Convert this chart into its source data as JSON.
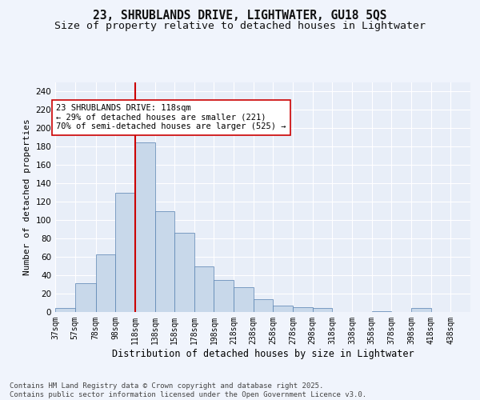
{
  "title1": "23, SHRUBLANDS DRIVE, LIGHTWATER, GU18 5QS",
  "title2": "Size of property relative to detached houses in Lightwater",
  "xlabel": "Distribution of detached houses by size in Lightwater",
  "ylabel": "Number of detached properties",
  "bar_left_edges": [
    37,
    57,
    78,
    98,
    118,
    138,
    158,
    178,
    198,
    218,
    238,
    258,
    278,
    298,
    318,
    338,
    358,
    378,
    398,
    418
  ],
  "bar_widths": [
    20,
    21,
    20,
    20,
    20,
    20,
    20,
    20,
    20,
    20,
    20,
    20,
    20,
    20,
    20,
    20,
    20,
    20,
    20,
    20
  ],
  "bar_heights": [
    4,
    31,
    63,
    130,
    184,
    110,
    86,
    50,
    35,
    27,
    14,
    7,
    5,
    4,
    0,
    0,
    1,
    0,
    4,
    0
  ],
  "tick_labels": [
    "37sqm",
    "57sqm",
    "78sqm",
    "98sqm",
    "118sqm",
    "138sqm",
    "158sqm",
    "178sqm",
    "198sqm",
    "218sqm",
    "238sqm",
    "258sqm",
    "278sqm",
    "298sqm",
    "318sqm",
    "338sqm",
    "358sqm",
    "378sqm",
    "398sqm",
    "418sqm",
    "438sqm"
  ],
  "tick_positions": [
    37,
    57,
    78,
    98,
    118,
    138,
    158,
    178,
    198,
    218,
    238,
    258,
    278,
    298,
    318,
    338,
    358,
    378,
    398,
    418,
    438
  ],
  "bar_color": "#c8d8ea",
  "bar_edge_color": "#5580b0",
  "vline_x": 118,
  "vline_color": "#cc0000",
  "annotation_line1": "23 SHRUBLANDS DRIVE: 118sqm",
  "annotation_line2": "← 29% of detached houses are smaller (221)",
  "annotation_line3": "70% of semi-detached houses are larger (525) →",
  "annotation_box_color": "#ffffff",
  "annotation_box_edge": "#cc0000",
  "ylim": [
    0,
    250
  ],
  "yticks": [
    0,
    20,
    40,
    60,
    80,
    100,
    120,
    140,
    160,
    180,
    200,
    220,
    240
  ],
  "bg_color": "#e8eef8",
  "fig_bg_color": "#f0f4fc",
  "grid_color": "#ffffff",
  "footer_text": "Contains HM Land Registry data © Crown copyright and database right 2025.\nContains public sector information licensed under the Open Government Licence v3.0.",
  "title1_fontsize": 10.5,
  "title2_fontsize": 9.5,
  "xlabel_fontsize": 8.5,
  "ylabel_fontsize": 8,
  "tick_fontsize": 7,
  "annotation_fontsize": 7.5,
  "footer_fontsize": 6.5
}
